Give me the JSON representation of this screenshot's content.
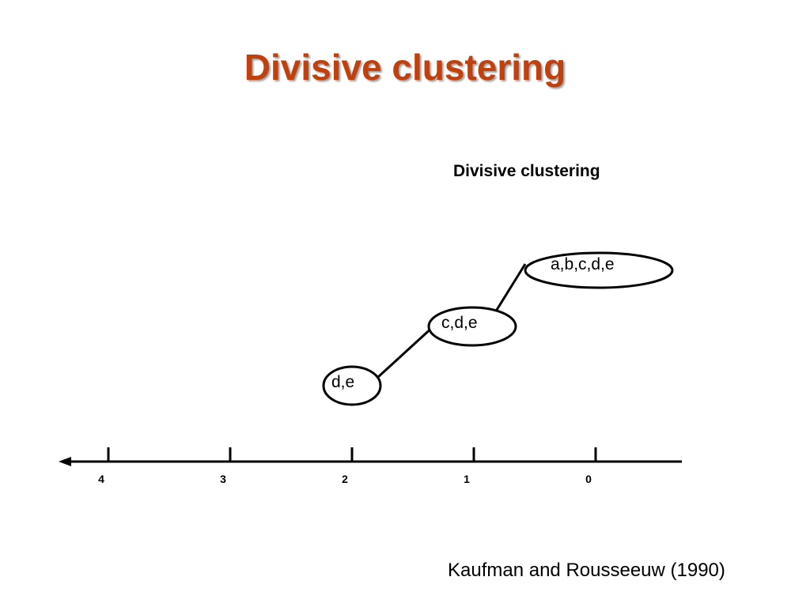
{
  "slide": {
    "title": "Divisive clustering",
    "title_color": "#c0400e",
    "citation": "Kaufman and Rousseeuw (1990)"
  },
  "diagram": {
    "title": "Divisive clustering",
    "nodes": [
      {
        "label": "a,b,c,d,e",
        "step": 0
      },
      {
        "label": "c,d,e",
        "step": 1
      },
      {
        "label": "d,e",
        "step": 2
      }
    ],
    "axis": {
      "direction": "right-to-left",
      "ticks": [
        "4",
        "3",
        "2",
        "1",
        "0"
      ]
    }
  }
}
